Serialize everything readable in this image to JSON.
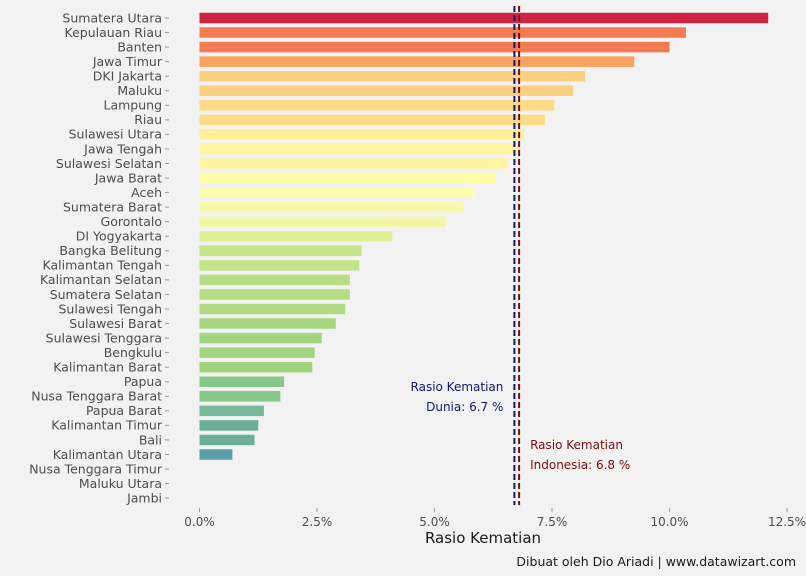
{
  "chart_data": {
    "type": "bar",
    "orientation": "horizontal",
    "categories": [
      "Sumatera Utara",
      "Kepulauan Riau",
      "Banten",
      "Jawa Timur",
      "DKI Jakarta",
      "Maluku",
      "Lampung",
      "Riau",
      "Sulawesi Utara",
      "Jawa Tengah",
      "Sulawesi Selatan",
      "Jawa Barat",
      "Aceh",
      "Sumatera Barat",
      "Gorontalo",
      "DI Yogyakarta",
      "Bangka Belitung",
      "Kalimantan Tengah",
      "Kalimantan Selatan",
      "Sumatera Selatan",
      "Sulawesi Tengah",
      "Sulawesi Barat",
      "Sulawesi Tenggara",
      "Bengkulu",
      "Kalimantan Barat",
      "Papua",
      "Nusa Tenggara Barat",
      "Papua Barat",
      "Kalimantan Timur",
      "Bali",
      "Kalimantan Utara",
      "Nusa Tenggara Timur",
      "Maluku Utara",
      "Jambi"
    ],
    "values": [
      12.1,
      10.35,
      10.0,
      9.25,
      8.2,
      7.95,
      7.55,
      7.35,
      6.9,
      6.75,
      6.55,
      6.3,
      5.85,
      5.6,
      5.25,
      4.1,
      3.45,
      3.4,
      3.2,
      3.2,
      3.1,
      2.9,
      2.6,
      2.45,
      2.4,
      1.8,
      1.72,
      1.37,
      1.25,
      1.17,
      0.7,
      0,
      0,
      0
    ],
    "colors": [
      "#cc2442",
      "#f47a52",
      "#f47a52",
      "#f9a260",
      "#fdd07f",
      "#fdd07f",
      "#fedc85",
      "#fedc85",
      "#fff096",
      "#fff59f",
      "#fff59f",
      "#fffca8",
      "#fdfdae",
      "#f7faaa",
      "#f1f7a6",
      "#e0f195",
      "#c4e38a",
      "#c4e38a",
      "#b8dd85",
      "#b8dd85",
      "#b0d983",
      "#a8d680",
      "#a3d57f",
      "#a3d57f",
      "#a3d57f",
      "#88c78a",
      "#88c78a",
      "#77b896",
      "#6cae98",
      "#6cae98",
      "#5c9ea8",
      "#cccccc",
      "#cccccc",
      "#cccccc"
    ],
    "xlim": [
      -0.8,
      12.5
    ],
    "xticks": [
      0,
      2.5,
      5,
      7.5,
      10,
      12.5
    ],
    "xtick_labels": [
      "0.0%",
      "2.5%",
      "5.0%",
      "7.5%",
      "10.0%",
      "12.5%"
    ],
    "xlabel": "Rasio Kematian",
    "grid": false,
    "reference_lines": [
      {
        "value": 6.7,
        "color": "#121770",
        "label_line1": "Rasio Kematian",
        "label_line2": "Dunia: 6.7 %",
        "side": "left"
      },
      {
        "value": 6.8,
        "color": "#7d0d0d",
        "label_line1": "Rasio Kematian",
        "label_line2": "Indonesia: 6.8 %",
        "side": "right"
      }
    ]
  },
  "caption": "Dibuat oleh Dio Ariadi | www.datawizart.com"
}
